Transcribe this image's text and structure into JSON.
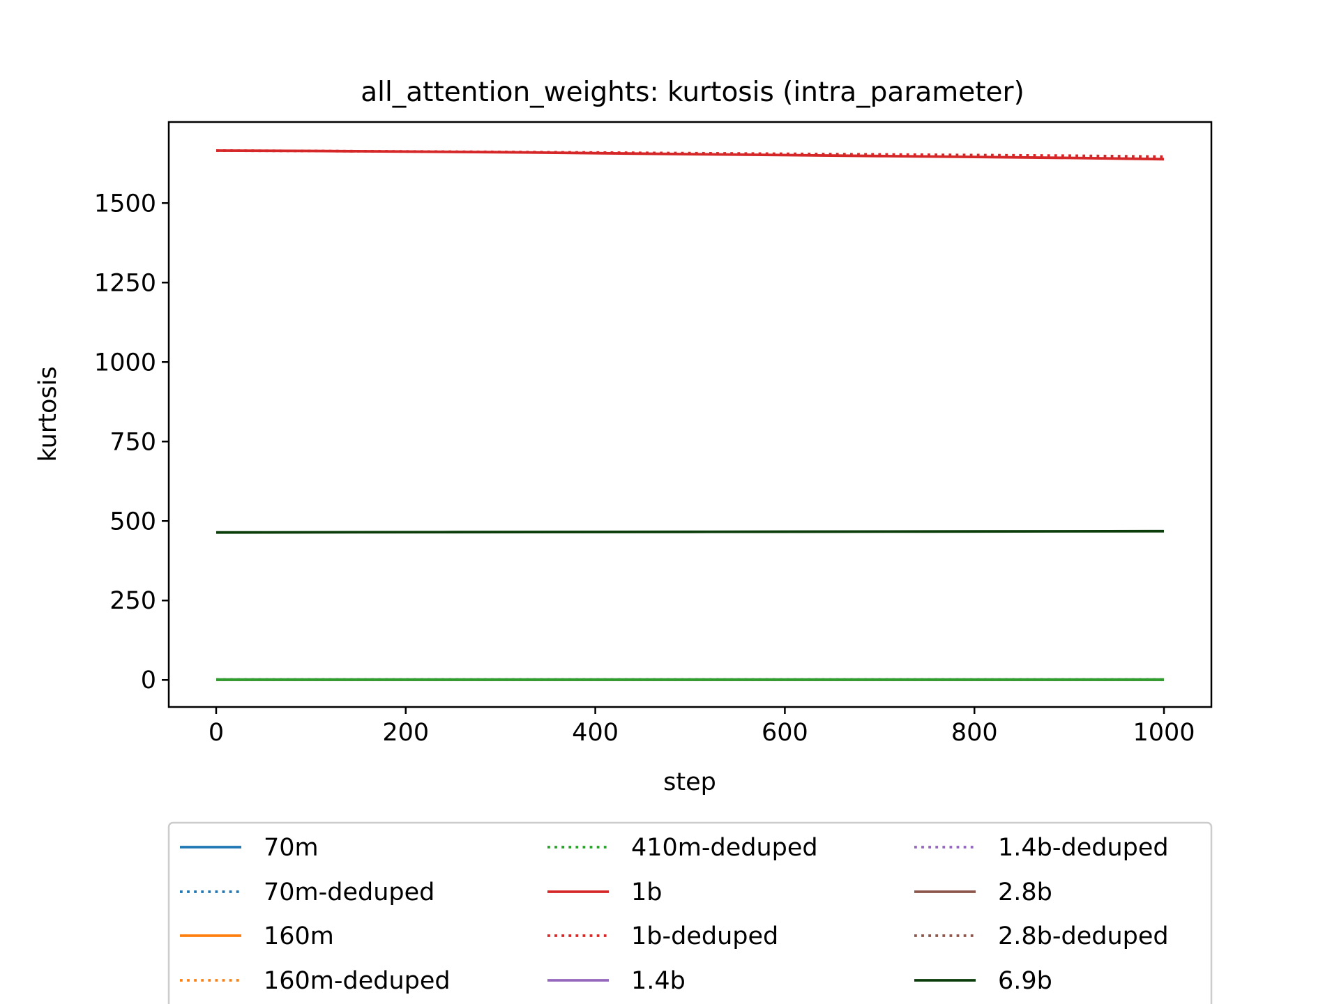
{
  "chart_data": {
    "type": "line",
    "title": "all_attention_weights: kurtosis (intra_parameter)",
    "xlabel": "step",
    "ylabel": "kurtosis",
    "xlim": [
      -50,
      1050
    ],
    "ylim": [
      -85,
      1755
    ],
    "xticks": [
      0,
      200,
      400,
      600,
      800,
      1000
    ],
    "yticks": [
      0,
      250,
      500,
      750,
      1000,
      1250,
      1500
    ],
    "grid": false,
    "legend_position": "below",
    "series": [
      {
        "name": "70m",
        "color": "#1f77b4",
        "style": "solid",
        "x": [
          0,
          1000
        ],
        "y": [
          0.5,
          0.5
        ]
      },
      {
        "name": "70m-deduped",
        "color": "#1f77b4",
        "style": "dotted",
        "x": [
          0,
          1000
        ],
        "y": [
          0.5,
          0.5
        ]
      },
      {
        "name": "160m",
        "color": "#ff7f0e",
        "style": "solid",
        "x": [
          0,
          1000
        ],
        "y": [
          0.5,
          0.5
        ]
      },
      {
        "name": "160m-deduped",
        "color": "#ff7f0e",
        "style": "dotted",
        "x": [
          0,
          1000
        ],
        "y": [
          0.5,
          0.5
        ]
      },
      {
        "name": "410m-deduped",
        "color": "#2ca02c",
        "style": "dotted",
        "x": [
          0,
          1000
        ],
        "y": [
          1,
          1
        ]
      },
      {
        "name": "1b",
        "color": "#d62728",
        "style": "solid",
        "x": [
          0,
          100,
          300,
          500,
          700,
          900,
          1000
        ],
        "y": [
          1665,
          1664,
          1660,
          1654,
          1648,
          1642,
          1638
        ]
      },
      {
        "name": "1b-deduped",
        "color": "#d62728",
        "style": "dotted",
        "x": [
          0,
          100,
          300,
          500,
          700,
          900,
          1000
        ],
        "y": [
          1665,
          1664,
          1661,
          1657,
          1653,
          1649,
          1646
        ]
      },
      {
        "name": "1.4b",
        "color": "#9467bd",
        "style": "solid",
        "x": [
          0,
          1000
        ],
        "y": [
          1,
          1
        ]
      },
      {
        "name": "1.4b-deduped",
        "color": "#9467bd",
        "style": "dotted",
        "x": [
          0,
          1000
        ],
        "y": [
          1,
          1
        ]
      },
      {
        "name": "2.8b",
        "color": "#8c564b",
        "style": "solid",
        "x": [
          0,
          1000
        ],
        "y": [
          1,
          1
        ]
      },
      {
        "name": "2.8b-deduped",
        "color": "#8c564b",
        "style": "dotted",
        "x": [
          0,
          1000
        ],
        "y": [
          1,
          1
        ]
      },
      {
        "name": "6.9b",
        "color": "#0b3d0b",
        "style": "solid",
        "x": [
          0,
          250,
          500,
          750,
          1000
        ],
        "y": [
          464,
          465,
          466,
          467,
          468
        ]
      },
      {
        "name": "",
        "color": "#2ca02c",
        "style": "solid",
        "x": [
          0,
          1000
        ],
        "y": [
          1,
          1
        ]
      }
    ]
  }
}
